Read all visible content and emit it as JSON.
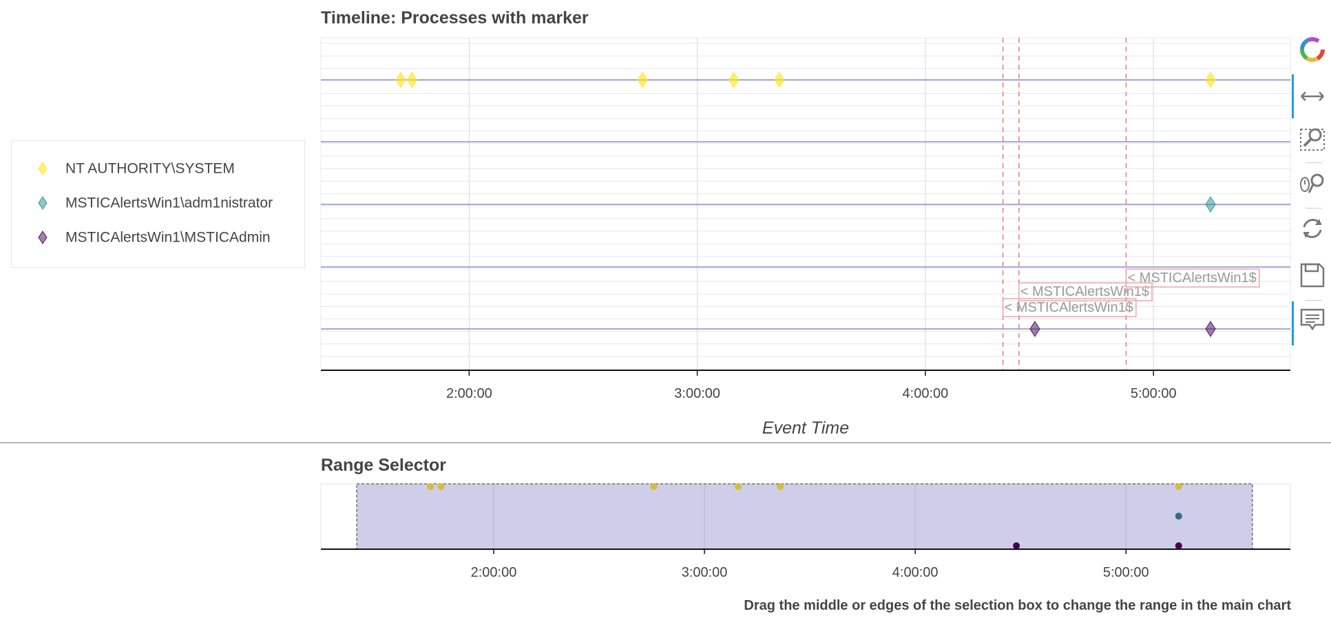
{
  "main_title": "Timeline: Processes with marker",
  "range_title": "Range Selector",
  "footnote": "Drag the middle or edges of the selection box to change the range in the main chart",
  "legend": [
    {
      "label": "NT AUTHORITY\\SYSTEM",
      "color": "#fde725"
    },
    {
      "label": "MSTICAlertsWin1\\adm1nistrator",
      "color": "#21918c"
    },
    {
      "label": "MSTICAlertsWin1\\MSTICAdmin",
      "color": "#440154"
    }
  ],
  "toolbar": [
    {
      "name": "bokeh-logo-icon",
      "active": false
    },
    {
      "name": "pan-x-icon",
      "active": true
    },
    {
      "name": "box-zoom-icon",
      "active": false
    },
    {
      "name": "wheel-zoom-icon",
      "active": false
    },
    {
      "name": "reset-icon",
      "active": false
    },
    {
      "name": "save-icon",
      "active": false
    },
    {
      "name": "hover-icon",
      "active": true
    }
  ],
  "chart_data": [
    {
      "type": "scatter",
      "title": "Timeline: Processes with marker",
      "xlabel": "Event Time",
      "ylabel": "",
      "x_ticks": [
        "2:00:00",
        "3:00:00",
        "4:00:00",
        "5:00:00"
      ],
      "x_range_hours": [
        1.35,
        5.6
      ],
      "grid": true,
      "legend_position": "left",
      "series": [
        {
          "name": "NT AUTHORITY\\SYSTEM",
          "color": "#fde725",
          "lane": 0,
          "x_hours": [
            1.7,
            1.75,
            2.76,
            3.16,
            3.36,
            5.25
          ]
        },
        {
          "name": "MSTICAlertsWin1\\adm1nistrator",
          "color": "#21918c",
          "lane": 2,
          "x_hours": [
            5.25
          ]
        },
        {
          "name": "MSTICAlertsWin1\\MSTICAdmin",
          "color": "#440154",
          "lane": 4,
          "x_hours": [
            4.48,
            5.25
          ]
        }
      ],
      "markers": [
        {
          "x_hours": 4.34,
          "label": "< MSTICAlertsWin1$"
        },
        {
          "x_hours": 4.41,
          "label": "< MSTICAlertsWin1$"
        },
        {
          "x_hours": 4.88,
          "label": "< MSTICAlertsWin1$"
        }
      ]
    },
    {
      "type": "scatter",
      "title": "Range Selector",
      "x_ticks": [
        "2:00:00",
        "3:00:00",
        "4:00:00",
        "5:00:00"
      ],
      "x_range_hours": [
        1.18,
        5.78
      ],
      "selection_hours": [
        1.35,
        5.6
      ],
      "series": [
        {
          "name": "NT AUTHORITY\\SYSTEM",
          "color": "#d4bd3a",
          "lane": 0,
          "x_hours": [
            1.7,
            1.75,
            2.76,
            3.16,
            3.36,
            5.25
          ]
        },
        {
          "name": "MSTICAlertsWin1\\adm1nistrator",
          "color": "#2e6d8e",
          "lane": 1,
          "x_hours": [
            5.25
          ]
        },
        {
          "name": "MSTICAlertsWin1\\MSTICAdmin",
          "color": "#440154",
          "lane": 2,
          "x_hours": [
            4.48,
            5.25
          ]
        }
      ]
    }
  ]
}
